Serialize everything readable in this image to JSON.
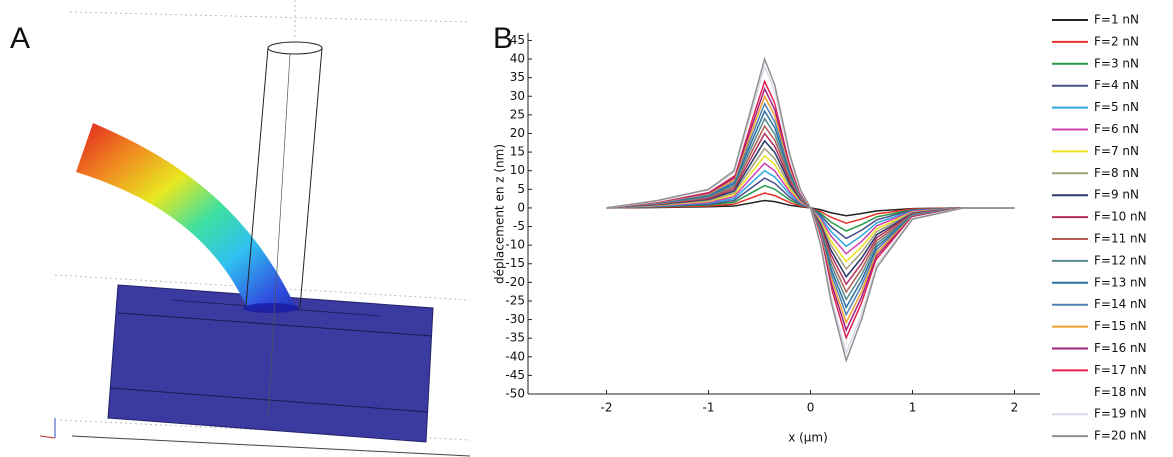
{
  "panel_labels": [
    "A",
    "B"
  ],
  "chart_data": {
    "type": "line",
    "xlabel": "x (µm)",
    "ylabel": "déplacement en z (nm)",
    "x": [
      -2,
      -1.5,
      -1,
      -0.75,
      -0.55,
      -0.45,
      -0.35,
      -0.2,
      -0.1,
      0,
      0.1,
      0.2,
      0.35,
      0.5,
      0.65,
      1,
      1.5,
      2
    ],
    "xlim": [
      -2.77,
      2.25
    ],
    "xticks": [
      -2,
      -1,
      0,
      1,
      2
    ],
    "ylim": [
      -50,
      47
    ],
    "yticks": [
      -50,
      -45,
      -40,
      -35,
      -30,
      -25,
      -20,
      -15,
      -10,
      -5,
      0,
      5,
      10,
      15,
      20,
      25,
      30,
      35,
      40,
      45
    ],
    "legend": "right",
    "series": [
      {
        "name": "F=1 nN",
        "color": "#222222",
        "values": [
          0,
          0.1,
          0.3,
          0.5,
          1.5,
          2,
          1.7,
          0.7,
          0.3,
          0,
          -0.5,
          -1.3,
          -2.1,
          -1.5,
          -0.8,
          -0.2,
          0,
          0
        ]
      },
      {
        "name": "F=2 nN",
        "color": "#e8312a",
        "values": [
          0,
          0.2,
          0.5,
          1,
          3,
          4,
          3.3,
          1.4,
          0.5,
          0,
          -1,
          -2.5,
          -4.1,
          -3,
          -1.6,
          -0.3,
          0,
          0
        ]
      },
      {
        "name": "F=3 nN",
        "color": "#2a9a4a",
        "values": [
          0,
          0.3,
          0.8,
          1.5,
          4.5,
          6,
          5,
          2.1,
          0.8,
          0,
          -1.5,
          -3.8,
          -6.2,
          -4.5,
          -2.4,
          -0.5,
          0,
          0
        ]
      },
      {
        "name": "F=4 nN",
        "color": "#4a4f8c",
        "values": [
          0,
          0.4,
          1,
          2,
          6,
          8,
          6.6,
          2.8,
          1,
          0,
          -2,
          -5,
          -8.2,
          -6,
          -3.2,
          -0.6,
          0,
          0
        ]
      },
      {
        "name": "F=5 nN",
        "color": "#29a8e0",
        "values": [
          0,
          0.5,
          1.3,
          2.5,
          7.5,
          10,
          8.3,
          3.5,
          1.3,
          0,
          -2.5,
          -6.3,
          -10.3,
          -7.5,
          -4,
          -0.8,
          0,
          0
        ]
      },
      {
        "name": "F=6 nN",
        "color": "#d040b0",
        "values": [
          0,
          0.6,
          1.5,
          3,
          9,
          12,
          9.9,
          4.2,
          1.5,
          0,
          -3,
          -7.5,
          -12.3,
          -9,
          -4.8,
          -0.9,
          0,
          0
        ]
      },
      {
        "name": "F=7 nN",
        "color": "#f0e020",
        "values": [
          0,
          0.7,
          1.8,
          3.5,
          10.5,
          14,
          11.6,
          4.9,
          1.8,
          0,
          -3.5,
          -8.8,
          -14.4,
          -10.5,
          -5.6,
          -1.1,
          0,
          0
        ]
      },
      {
        "name": "F=8 nN",
        "color": "#a0a080",
        "values": [
          0,
          0.8,
          2,
          4,
          12,
          16,
          13.2,
          5.6,
          2,
          0,
          -4,
          -10,
          -16.4,
          -12,
          -6.4,
          -1.2,
          0,
          0
        ]
      },
      {
        "name": "F=9 nN",
        "color": "#2a3a6a",
        "values": [
          0,
          0.9,
          2.3,
          4.5,
          13.5,
          18,
          14.9,
          6.3,
          2.3,
          0,
          -4.5,
          -11.3,
          -18.5,
          -13.5,
          -7.2,
          -1.4,
          0,
          0
        ]
      },
      {
        "name": "F=10 nN",
        "color": "#b03060",
        "values": [
          0,
          1,
          2.5,
          5,
          15,
          20,
          16.5,
          7,
          2.5,
          0,
          -5,
          -12.5,
          -20.5,
          -15,
          -8,
          -1.5,
          0,
          0
        ]
      },
      {
        "name": "F=11 nN",
        "color": "#b06050",
        "values": [
          0,
          1.1,
          2.8,
          5.5,
          16.5,
          22,
          18.2,
          7.7,
          2.8,
          0,
          -5.5,
          -13.8,
          -22.6,
          -16.5,
          -8.8,
          -1.7,
          0,
          0
        ]
      },
      {
        "name": "F=12 nN",
        "color": "#5a8a90",
        "values": [
          0,
          1.2,
          3,
          6,
          18,
          24,
          19.8,
          8.4,
          3,
          0,
          -6,
          -15,
          -24.6,
          -18,
          -9.6,
          -1.8,
          0,
          0
        ]
      },
      {
        "name": "F=13 nN",
        "color": "#2a70a0",
        "values": [
          0,
          1.3,
          3.3,
          6.5,
          19.5,
          26,
          21.5,
          9.1,
          3.3,
          0,
          -6.5,
          -16.3,
          -26.7,
          -19.5,
          -10.4,
          -2,
          0,
          0
        ]
      },
      {
        "name": "F=14 nN",
        "color": "#5080b0",
        "values": [
          0,
          1.4,
          3.5,
          7,
          21,
          28,
          23.1,
          9.8,
          3.5,
          0,
          -7,
          -17.5,
          -28.7,
          -21,
          -11.2,
          -2.1,
          0,
          0
        ]
      },
      {
        "name": "F=15 nN",
        "color": "#f0a030",
        "values": [
          0,
          1.5,
          3.8,
          7.5,
          22.5,
          30,
          24.8,
          10.5,
          3.8,
          0,
          -7.5,
          -18.8,
          -30.8,
          -22.5,
          -12,
          -2.3,
          0,
          0
        ]
      },
      {
        "name": "F=16 nN",
        "color": "#a02080",
        "values": [
          0,
          1.6,
          4,
          8,
          24,
          32,
          26.4,
          11.2,
          4,
          0,
          -8,
          -20,
          -32.8,
          -24,
          -12.8,
          -2.4,
          0,
          0
        ]
      },
      {
        "name": "F=17 nN",
        "color": "#e02050",
        "values": [
          0,
          1.7,
          4.3,
          8.5,
          25.5,
          34,
          28.1,
          11.9,
          4.3,
          0,
          -8.5,
          -21.3,
          -34.9,
          -25.5,
          -13.6,
          -2.6,
          0,
          0
        ]
      },
      {
        "name": "F=18 nN",
        "color": "#ffffff",
        "values": [
          0,
          1.8,
          4.5,
          9,
          27,
          36,
          29.7,
          12.6,
          4.5,
          0,
          -9,
          -22.5,
          -36.9,
          -27,
          -14.4,
          -2.7,
          0,
          0
        ]
      },
      {
        "name": "F=19 nN",
        "color": "#d8d8e8",
        "values": [
          0,
          1.9,
          4.8,
          9.5,
          28.5,
          38,
          31.4,
          13.3,
          4.8,
          0,
          -9.5,
          -23.8,
          -39,
          -28.5,
          -15.2,
          -2.9,
          0,
          0
        ]
      },
      {
        "name": "F=20 nN",
        "color": "#909090",
        "values": [
          0,
          2,
          5,
          10,
          30,
          40,
          33,
          14,
          5,
          0,
          -10,
          -25,
          -41,
          -30,
          -16,
          -3,
          0,
          0
        ]
      }
    ]
  }
}
